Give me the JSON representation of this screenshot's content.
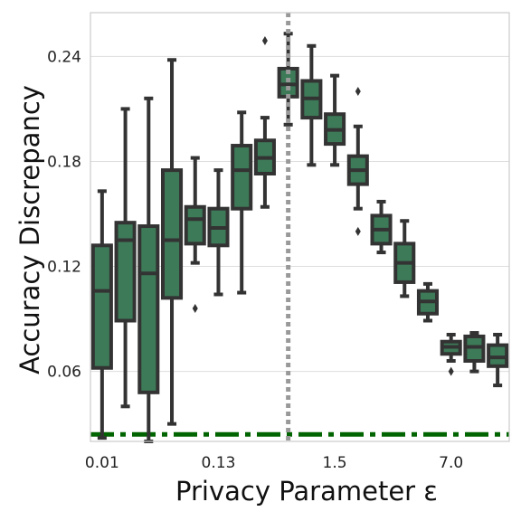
{
  "chart_data": {
    "type": "box",
    "xlabel": "Privacy Parameter ε",
    "ylabel": "Accuracy Discrepancy",
    "ylim": [
      0.02,
      0.265
    ],
    "y_ticks": [
      0.06,
      0.12,
      0.18,
      0.24
    ],
    "y_tick_labels": [
      "0.06",
      "0.12",
      "0.18",
      "0.24"
    ],
    "x_tick_labels": [
      {
        "label": "0.01",
        "box_index": 0
      },
      {
        "label": "0.13",
        "box_index": 5
      },
      {
        "label": "1.5",
        "box_index": 10
      },
      {
        "label": "7.0",
        "box_index": 15
      }
    ],
    "grid": "horizontal",
    "colors": {
      "box_fill": "#3d7a58",
      "box_edge": "#333333",
      "reference_line": "#006400",
      "vertical_marker": "#999999",
      "grid": "#dddddd",
      "frame": "#cccccc"
    },
    "boxes": [
      {
        "whislo": 0.022,
        "q1": 0.062,
        "med": 0.106,
        "q3": 0.132,
        "whishi": 0.163,
        "fliers": []
      },
      {
        "whislo": 0.04,
        "q1": 0.089,
        "med": 0.135,
        "q3": 0.145,
        "whishi": 0.21,
        "fliers": []
      },
      {
        "whislo": 0.02,
        "q1": 0.048,
        "med": 0.116,
        "q3": 0.143,
        "whishi": 0.216,
        "fliers": []
      },
      {
        "whislo": 0.03,
        "q1": 0.102,
        "med": 0.135,
        "q3": 0.175,
        "whishi": 0.238,
        "fliers": []
      },
      {
        "whislo": 0.122,
        "q1": 0.133,
        "med": 0.147,
        "q3": 0.154,
        "whishi": 0.182,
        "fliers": [
          0.096
        ]
      },
      {
        "whislo": 0.104,
        "q1": 0.132,
        "med": 0.142,
        "q3": 0.153,
        "whishi": 0.175,
        "fliers": []
      },
      {
        "whislo": 0.105,
        "q1": 0.153,
        "med": 0.175,
        "q3": 0.189,
        "whishi": 0.208,
        "fliers": []
      },
      {
        "whislo": 0.154,
        "q1": 0.173,
        "med": 0.182,
        "q3": 0.192,
        "whishi": 0.205,
        "fliers": [
          0.249
        ]
      },
      {
        "whislo": 0.201,
        "q1": 0.217,
        "med": 0.224,
        "q3": 0.233,
        "whishi": 0.253,
        "fliers": []
      },
      {
        "whislo": 0.178,
        "q1": 0.205,
        "med": 0.216,
        "q3": 0.226,
        "whishi": 0.246,
        "fliers": []
      },
      {
        "whislo": 0.178,
        "q1": 0.19,
        "med": 0.198,
        "q3": 0.207,
        "whishi": 0.229,
        "fliers": []
      },
      {
        "whislo": 0.153,
        "q1": 0.167,
        "med": 0.175,
        "q3": 0.183,
        "whishi": 0.2,
        "fliers": [
          0.22,
          0.14
        ]
      },
      {
        "whislo": 0.128,
        "q1": 0.133,
        "med": 0.141,
        "q3": 0.149,
        "whishi": 0.157,
        "fliers": []
      },
      {
        "whislo": 0.103,
        "q1": 0.111,
        "med": 0.122,
        "q3": 0.133,
        "whishi": 0.146,
        "fliers": []
      },
      {
        "whislo": 0.089,
        "q1": 0.093,
        "med": 0.1,
        "q3": 0.106,
        "whishi": 0.11,
        "fliers": []
      },
      {
        "whislo": 0.066,
        "q1": 0.07,
        "med": 0.074,
        "q3": 0.077,
        "whishi": 0.081,
        "fliers": [
          0.06
        ]
      },
      {
        "whislo": 0.06,
        "q1": 0.066,
        "med": 0.074,
        "q3": 0.08,
        "whishi": 0.082,
        "fliers": []
      },
      {
        "whislo": 0.052,
        "q1": 0.063,
        "med": 0.068,
        "q3": 0.075,
        "whishi": 0.081,
        "fliers": []
      }
    ],
    "reference_line": {
      "y": 0.024,
      "style": "dash-dot"
    },
    "vertical_marker": {
      "after_box_index": 8,
      "style": "dotted"
    }
  }
}
